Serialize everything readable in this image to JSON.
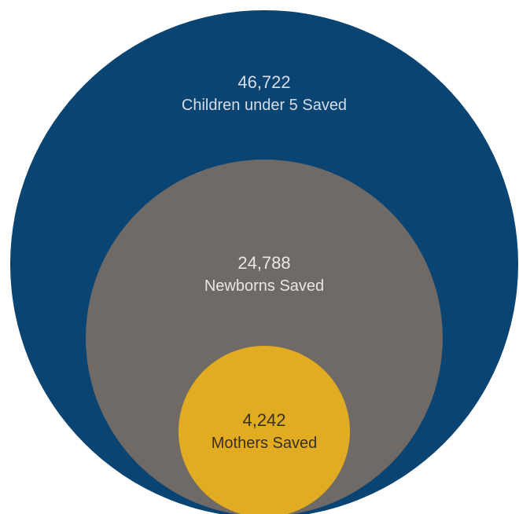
{
  "chart_data": {
    "type": "nested-circles",
    "title": "",
    "series": [
      {
        "value": 46722,
        "value_label": "46,722",
        "label": "Children under 5 Saved",
        "color": "#0a4472",
        "text_color": "#d6dde6"
      },
      {
        "value": 24788,
        "value_label": "24,788",
        "label": "Newborns Saved",
        "color": "#706a67",
        "text_color": "#e8e6e4"
      },
      {
        "value": 4242,
        "value_label": "4,242",
        "label": "Mothers Saved",
        "color": "#e1ac22",
        "text_color": "#3a3020"
      }
    ]
  }
}
